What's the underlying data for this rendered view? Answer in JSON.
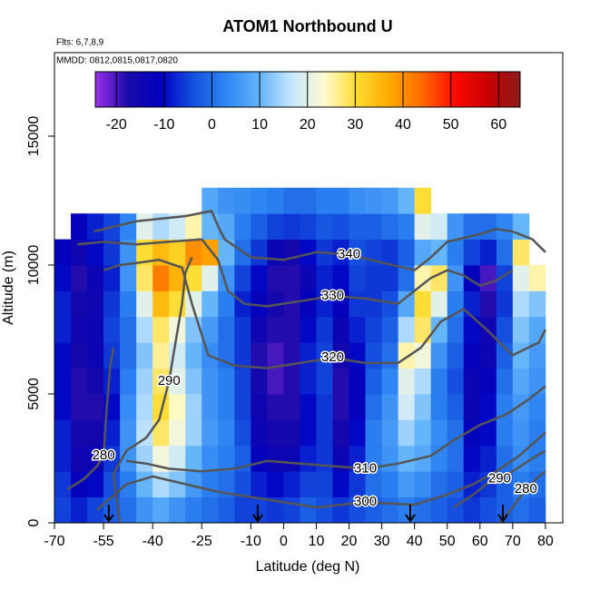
{
  "chart_data": {
    "type": "heatmap",
    "title": "ATOM1 Northbound U",
    "subtitle": "Flts: 6,7,8,9",
    "annotation": "MMDD: 0812,0815,0817,0820",
    "xlabel": "Latitude (deg N)",
    "ylabel": "Altitude (m)",
    "xlim": [
      -70,
      85.3
    ],
    "ylim": [
      0,
      18240
    ],
    "xticks": [
      -70,
      -55,
      -40,
      -25,
      -10,
      0,
      10,
      20,
      30,
      40,
      50,
      60,
      70,
      80
    ],
    "yticks": [
      0,
      5000,
      10000,
      15000
    ],
    "clim": [
      -24.4,
      64.5
    ],
    "cticks": [
      -20,
      -10,
      0,
      10,
      20,
      30,
      40,
      50,
      60
    ],
    "colormap": [
      "#9a30e8",
      "#1a0aa8",
      "#0000c0",
      "#1450e0",
      "#2f86f2",
      "#62b3fb",
      "#c4e6ff",
      "#fffbd0",
      "#ffdc30",
      "#ffaa00",
      "#ff6a00",
      "#ff0a00",
      "#c80000",
      "#8b1c1c"
    ],
    "xbins": [
      -70,
      -65,
      -60,
      -55,
      -50,
      -45,
      -40,
      -35,
      -30,
      -25,
      -20,
      -15,
      -10,
      -5,
      0,
      5,
      10,
      15,
      20,
      25,
      30,
      35,
      40,
      45,
      50,
      55,
      60,
      65,
      70,
      75,
      80
    ],
    "ybins": [
      0,
      1000,
      2000,
      3000,
      4000,
      5000,
      6000,
      7000,
      8000,
      9000,
      10000,
      11000,
      12000,
      13000
    ],
    "z": [
      [
        -5,
        -6,
        -8,
        -8,
        -10,
        -10,
        -10,
        -8,
        -8,
        -10,
        -12,
        null,
        null
      ],
      [
        -8,
        -12,
        -15,
        -16,
        -18,
        -18,
        -16,
        -15,
        -16,
        -18,
        -15,
        -12,
        null
      ],
      [
        -5,
        -10,
        -14,
        -16,
        -18,
        -16,
        -14,
        -14,
        -15,
        -14,
        -10,
        -8,
        null
      ],
      [
        -2,
        -4,
        -6,
        -8,
        -10,
        -8,
        -6,
        -5,
        -6,
        -8,
        -6,
        -5,
        null
      ],
      [
        0,
        2,
        5,
        5,
        4,
        2,
        0,
        0,
        2,
        5,
        5,
        3,
        null
      ],
      [
        5,
        10,
        14,
        16,
        15,
        14,
        12,
        15,
        20,
        28,
        30,
        20,
        null
      ],
      [
        8,
        15,
        22,
        28,
        30,
        28,
        26,
        28,
        35,
        42,
        35,
        15,
        null
      ],
      [
        5,
        12,
        18,
        22,
        24,
        20,
        18,
        22,
        30,
        36,
        32,
        18,
        null
      ],
      [
        2,
        6,
        10,
        14,
        14,
        12,
        10,
        12,
        20,
        30,
        40,
        25,
        null
      ],
      [
        0,
        2,
        4,
        6,
        5,
        5,
        4,
        6,
        10,
        20,
        38,
        10,
        8
      ],
      [
        -2,
        0,
        2,
        3,
        2,
        2,
        0,
        0,
        2,
        5,
        10,
        8,
        5
      ],
      [
        -5,
        -4,
        -2,
        -4,
        -5,
        -5,
        -6,
        -6,
        -8,
        -5,
        0,
        2,
        4
      ],
      [
        -5,
        -8,
        -12,
        -14,
        -15,
        -16,
        -18,
        -15,
        -12,
        -10,
        -6,
        -2,
        3
      ],
      [
        -6,
        -10,
        -14,
        -16,
        -18,
        -20,
        -20,
        -18,
        -16,
        -18,
        -14,
        -5,
        2
      ],
      [
        -5,
        -8,
        -14,
        -16,
        -18,
        -18,
        -18,
        -18,
        -18,
        -18,
        -16,
        -6,
        0
      ],
      [
        -2,
        -5,
        -8,
        -10,
        -10,
        -8,
        -8,
        -10,
        -12,
        -14,
        -10,
        -5,
        0
      ],
      [
        -4,
        -5,
        -6,
        -6,
        -6,
        -5,
        -5,
        -6,
        -8,
        -8,
        -6,
        -3,
        2
      ],
      [
        -6,
        -10,
        -14,
        -16,
        -18,
        -18,
        -16,
        -14,
        -12,
        -10,
        -8,
        -4,
        2
      ],
      [
        -4,
        -6,
        -8,
        -10,
        -12,
        -12,
        -10,
        -8,
        -6,
        -5,
        -4,
        -2,
        4
      ],
      [
        -2,
        0,
        2,
        2,
        0,
        -2,
        -4,
        -5,
        -6,
        -6,
        -5,
        -2,
        5
      ],
      [
        0,
        2,
        5,
        6,
        5,
        3,
        0,
        -2,
        -4,
        -6,
        -6,
        0,
        6
      ],
      [
        2,
        6,
        10,
        14,
        18,
        20,
        25,
        15,
        8,
        0,
        -2,
        2,
        10
      ],
      [
        0,
        4,
        8,
        10,
        12,
        15,
        22,
        28,
        30,
        25,
        8,
        20,
        30
      ],
      [
        -2,
        0,
        3,
        4,
        2,
        2,
        5,
        10,
        20,
        28,
        10,
        18,
        null
      ],
      [
        -4,
        -2,
        0,
        0,
        -2,
        -4,
        -2,
        0,
        2,
        5,
        2,
        5,
        null
      ],
      [
        -6,
        -8,
        -10,
        -12,
        -14,
        -14,
        -12,
        -10,
        -8,
        -12,
        -5,
        0,
        null
      ],
      [
        -4,
        -6,
        -8,
        -10,
        -10,
        -12,
        -14,
        -15,
        -18,
        -20,
        -8,
        0,
        null
      ],
      [
        -2,
        -2,
        0,
        2,
        2,
        0,
        -2,
        -4,
        -6,
        -5,
        0,
        3,
        null
      ],
      [
        0,
        2,
        4,
        5,
        6,
        8,
        10,
        12,
        15,
        20,
        28,
        10,
        null
      ],
      [
        -2,
        0,
        2,
        2,
        3,
        5,
        6,
        8,
        12,
        25,
        null,
        null,
        null
      ]
    ],
    "contour_color": "#555555",
    "contours": [
      {
        "level": 280,
        "x": [
          -66,
          -61,
          -57,
          -55,
          -54,
          -53,
          -52
        ],
        "y": [
          1300,
          1700,
          2200,
          2600,
          4500,
          6000,
          6800
        ]
      },
      {
        "level": 290,
        "x": [
          -50,
          -52,
          -48,
          -42,
          -38,
          -35,
          -33,
          -31,
          -30,
          -28
        ],
        "y": [
          0,
          1900,
          2800,
          3300,
          4000,
          5500,
          7000,
          8500,
          9700,
          10300
        ]
      },
      {
        "level": 300,
        "x": [
          -57,
          -48,
          -40,
          -30,
          -20,
          -5,
          10,
          25,
          40,
          50,
          58,
          65,
          72,
          80
        ],
        "y": [
          500,
          1500,
          1800,
          1500,
          1200,
          900,
          600,
          800,
          700,
          1100,
          1500,
          2000,
          2600,
          3500
        ]
      },
      {
        "level": 310,
        "x": [
          -48,
          -42,
          -35,
          -25,
          -15,
          -5,
          5,
          15,
          25,
          35,
          45,
          52,
          60,
          68,
          75,
          80
        ],
        "y": [
          2400,
          2300,
          2100,
          2000,
          2100,
          2400,
          2300,
          2200,
          2100,
          2300,
          2600,
          3200,
          3800,
          4200,
          4800,
          5300
        ]
      },
      {
        "level": 320,
        "x": [
          -55,
          -50,
          -44,
          -38,
          -31,
          -28,
          -23,
          -15,
          -5,
          5,
          15,
          25,
          35,
          42,
          48,
          55,
          62,
          70,
          78,
          80
        ],
        "y": [
          9800,
          10000,
          10100,
          10200,
          9900,
          8500,
          6500,
          6100,
          6000,
          6200,
          6400,
          6200,
          6200,
          6800,
          7800,
          8300,
          7500,
          6500,
          7000,
          7500
        ]
      },
      {
        "level": 330,
        "x": [
          -63,
          -55,
          -45,
          -35,
          -25,
          -20,
          -17,
          -12,
          -5,
          5,
          15,
          25,
          35,
          40,
          45,
          50,
          55,
          60,
          65,
          70
        ],
        "y": [
          10800,
          10900,
          10800,
          10900,
          11000,
          10200,
          9000,
          8500,
          8400,
          8600,
          8800,
          8700,
          8500,
          9000,
          9500,
          9800,
          9600,
          9200,
          9400,
          9800
        ]
      },
      {
        "level": 340,
        "x": [
          -58,
          -45,
          -30,
          -22,
          -20,
          -18,
          -10,
          0,
          10,
          20,
          30,
          40,
          45,
          50,
          60,
          65,
          70,
          76,
          80
        ],
        "y": [
          11300,
          11700,
          11900,
          12100,
          11500,
          11000,
          10300,
          10200,
          10500,
          10400,
          10100,
          9800,
          10300,
          10900,
          11200,
          11400,
          11300,
          11000,
          10500
        ]
      },
      {
        "level": 280,
        "x": [
          66,
          70,
          74,
          78,
          80
        ],
        "y": [
          0,
          600,
          1300,
          1800,
          2000
        ]
      },
      {
        "level": 290,
        "x": [
          52,
          58,
          62,
          66,
          70,
          76,
          80
        ],
        "y": [
          600,
          1100,
          1500,
          1700,
          2000,
          2500,
          2800
        ]
      }
    ],
    "arrows": [
      -53.4,
      -7.9,
      38.7,
      67
    ]
  }
}
